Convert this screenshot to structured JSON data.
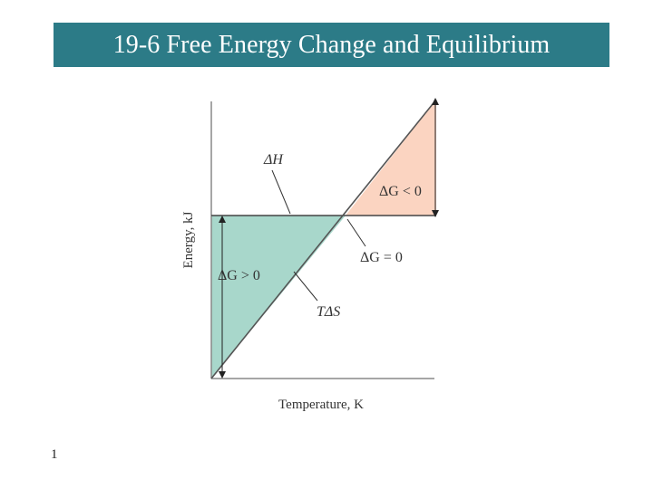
{
  "slide": {
    "title": "19-6 Free Energy Change and Equilibrium",
    "page_number": "1"
  },
  "diagram": {
    "y_axis_label": "Energy, kJ",
    "x_axis_label": "Temperature, K",
    "label_delta_h": "ΔH",
    "label_t_delta_s": "TΔS",
    "label_dg_negative": "ΔG < 0",
    "label_dg_zero": "ΔG = 0",
    "label_dg_positive": "ΔG > 0",
    "colors": {
      "title_bg": "#2c7b87",
      "positive_region": "#a8d7cb",
      "negative_region": "#fbd4c1",
      "axis": "#888888"
    }
  }
}
